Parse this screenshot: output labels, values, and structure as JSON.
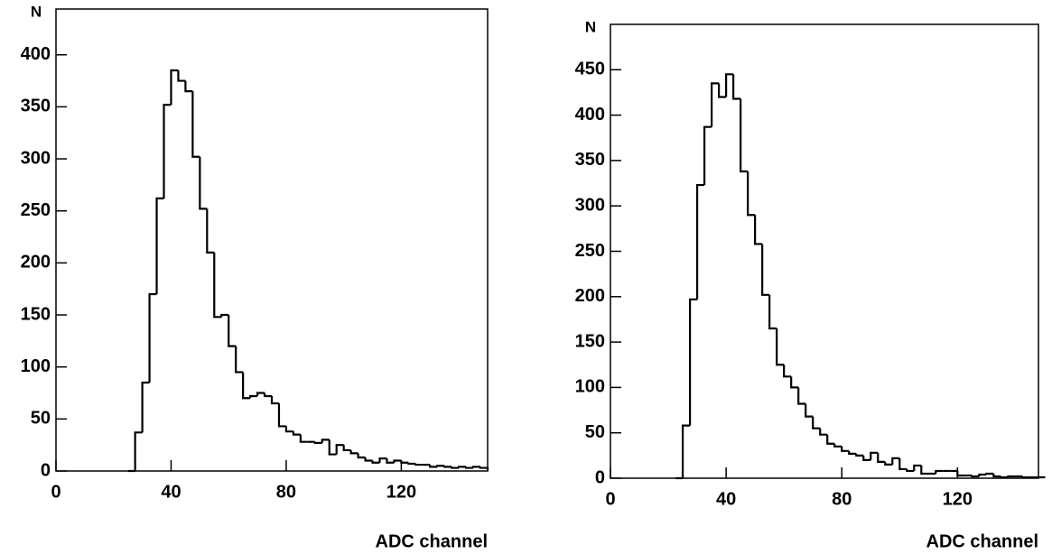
{
  "chart_data": [
    {
      "type": "histogram",
      "ylabel": "N",
      "xlabel": "ADC channel",
      "color": "#000000",
      "bins": [
        25,
        27.5,
        30,
        32.5,
        35,
        37.5,
        40,
        42.5,
        45,
        47.5,
        50,
        52.5,
        55,
        57.5,
        60,
        62.5,
        65,
        67.5,
        70,
        72.5,
        75,
        77.5,
        80,
        82.5,
        85,
        87.5,
        90,
        92.5,
        95,
        97.5,
        100,
        102.5,
        105,
        107.5,
        110,
        112.5,
        115,
        117.5,
        120,
        122.5,
        125,
        127.5,
        130,
        132.5,
        135,
        137.5,
        140,
        142.5,
        145,
        147.5,
        150
      ],
      "values": [
        0,
        37,
        85,
        170,
        262,
        352,
        385,
        375,
        365,
        302,
        252,
        210,
        148,
        150,
        120,
        95,
        70,
        72,
        75,
        72,
        65,
        43,
        38,
        35,
        28,
        28,
        27,
        30,
        16,
        25,
        20,
        17,
        13,
        10,
        8,
        12,
        8,
        10,
        8,
        7,
        6,
        6,
        4,
        5,
        4,
        3,
        4,
        3,
        4,
        3
      ],
      "xlim": [
        0,
        150
      ],
      "ylim": [
        0,
        444
      ],
      "xticks": [
        0,
        40,
        80,
        120
      ],
      "yticks": [
        0,
        50,
        100,
        150,
        200,
        250,
        300,
        350,
        400
      ]
    },
    {
      "type": "histogram",
      "ylabel": "N",
      "xlabel": "ADC channel",
      "color": "#000000",
      "bins": [
        22.5,
        25,
        27.5,
        30,
        32.5,
        35,
        37.5,
        40,
        42.5,
        45,
        47.5,
        50,
        52.5,
        55,
        57.5,
        60,
        62.5,
        65,
        67.5,
        70,
        72.5,
        75,
        77.5,
        80,
        82.5,
        85,
        87.5,
        90,
        92.5,
        95,
        97.5,
        100,
        102.5,
        105,
        107.5,
        110,
        112.5,
        115,
        117.5,
        120,
        122.5,
        125,
        127.5,
        130,
        132.5,
        135,
        137.5,
        140,
        142.5,
        145,
        147.5,
        150
      ],
      "values": [
        0,
        58,
        197,
        323,
        387,
        435,
        420,
        445,
        418,
        338,
        290,
        258,
        202,
        165,
        125,
        112,
        100,
        82,
        68,
        55,
        48,
        38,
        35,
        30,
        27,
        25,
        20,
        28,
        18,
        15,
        22,
        10,
        8,
        14,
        5,
        5,
        8,
        8,
        8,
        3,
        3,
        2,
        4,
        5,
        2,
        1,
        2,
        2,
        1,
        1,
        1
      ],
      "xlim": [
        0,
        148
      ],
      "ylim": [
        0,
        500
      ],
      "xticks": [
        0,
        40,
        80,
        120
      ],
      "yticks": [
        0,
        50,
        100,
        150,
        200,
        250,
        300,
        350,
        400,
        450
      ]
    }
  ]
}
